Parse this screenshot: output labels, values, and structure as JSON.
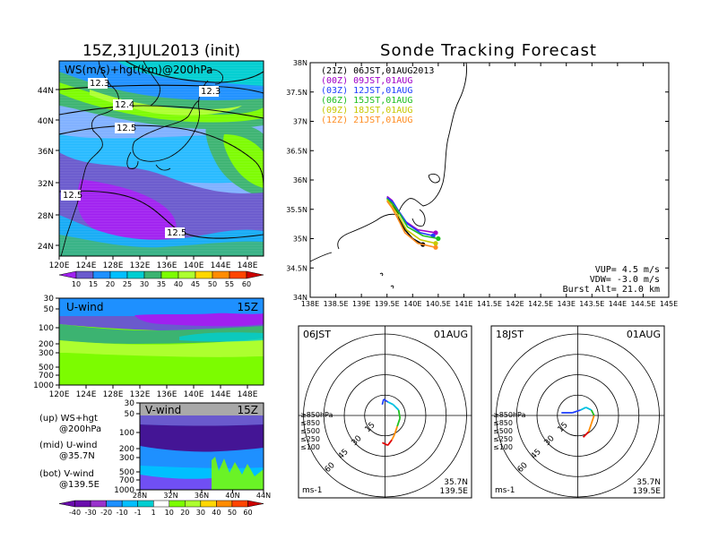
{
  "left_title": "15Z,31JUL2013 (init)",
  "right_title": "Sonde Tracking Forecast",
  "map_panel": {
    "label": "WS(m/s)+hgt(km)@200hPa",
    "lat_ticks": [
      "44N",
      "40N",
      "36N",
      "32N",
      "28N",
      "24N"
    ],
    "lon_ticks": [
      "120E",
      "124E",
      "128E",
      "132E",
      "136E",
      "140E",
      "144E",
      "148E"
    ],
    "contour_labels": [
      "12.3",
      "12.3",
      "12.4",
      "12.5",
      "12.5",
      "12.5"
    ],
    "colorbar_labels": [
      "10",
      "15",
      "20",
      "25",
      "30",
      "35",
      "40",
      "45",
      "50",
      "55",
      "60"
    ],
    "colorbar_colors": [
      "#a020f0",
      "#6a5acd",
      "#1e90ff",
      "#00bfff",
      "#00ced1",
      "#3cb371",
      "#7cfc00",
      "#adff2f",
      "#ffd700",
      "#ff8c00",
      "#ff4500",
      "#cc0000"
    ]
  },
  "uwind_panel": {
    "label": "U-wind",
    "time": "15Z",
    "p_ticks": [
      "30",
      "50",
      "100",
      "200",
      "300",
      "500",
      "700",
      "1000"
    ],
    "lon_ticks": [
      "120E",
      "124E",
      "128E",
      "132E",
      "136E",
      "140E",
      "144E",
      "148E"
    ]
  },
  "vwind_panel": {
    "label": "V-wind",
    "time": "15Z",
    "p_ticks": [
      "30",
      "50",
      "100",
      "200",
      "300",
      "500",
      "700",
      "1000"
    ],
    "lat_ticks": [
      "28N",
      "32N",
      "36N",
      "40N",
      "44N"
    ],
    "colorbar_labels": [
      "-40",
      "-30",
      "-20",
      "-10",
      "-1",
      "1",
      "10",
      "20",
      "30",
      "40",
      "50",
      "60"
    ],
    "colorbar_colors": [
      "#6a0dad",
      "#9932cc",
      "#1e90ff",
      "#00bfff",
      "#00ced1",
      "#ffffff",
      "#7cfc00",
      "#adff2f",
      "#ffd700",
      "#ff8c00",
      "#ff4500",
      "#cc0000"
    ]
  },
  "legend_notes": {
    "up": "(up) WS+hgt",
    "up2": "@200hPa",
    "mid": "(mid) U-wind",
    "mid2": "@35.7N",
    "bot": "(bot) V-wind",
    "bot2": "@139.5E"
  },
  "tracking_panel": {
    "lat_ticks": [
      "38N",
      "37.5N",
      "37N",
      "36.5N",
      "36N",
      "35.5N",
      "35N",
      "34.5N",
      "34N"
    ],
    "lon_ticks": [
      "138E",
      "138.5E",
      "139E",
      "139.5E",
      "140E",
      "140.5E",
      "141E",
      "141.5E",
      "142E",
      "142.5E",
      "143E",
      "143.5E",
      "144E",
      "144.5E",
      "145E"
    ],
    "launches": [
      {
        "label": "(21Z)  06JST,01AUG2013",
        "color": "#000000"
      },
      {
        "label": "(00Z)  09JST,01AUG",
        "color": "#a000c8"
      },
      {
        "label": "(03Z)  12JST,01AUG",
        "color": "#2040ff"
      },
      {
        "label": "(06Z)  15JST,01AUG",
        "color": "#20c020"
      },
      {
        "label": "(09Z)  18JST,01AUG",
        "color": "#c8c800"
      },
      {
        "label": "(12Z)  21JST,01AUG",
        "color": "#ff8c20"
      }
    ],
    "vup": "VUP=  4.5 m/s",
    "vdw": "VDW= -3.0 m/s",
    "burst": "Burst Alt=  21.0 km"
  },
  "chart_data": [
    {
      "type": "line",
      "title": "Sonde Tracking Forecast",
      "xlim": [
        138,
        145
      ],
      "ylim": [
        34,
        38
      ],
      "series": [
        {
          "name": "(21Z)  06JST,01AUG2013",
          "color": "#000000",
          "x": [
            139.5,
            139.6,
            139.7,
            139.75,
            139.85,
            140.0,
            140.2
          ],
          "y": [
            35.7,
            35.6,
            35.45,
            35.3,
            35.15,
            35.0,
            34.9
          ]
        },
        {
          "name": "(00Z)  09JST,01AUG",
          "color": "#a000c8",
          "x": [
            139.5,
            139.6,
            139.7,
            139.85,
            140.1,
            140.45
          ],
          "y": [
            35.72,
            35.65,
            35.5,
            35.3,
            35.15,
            35.1
          ]
        },
        {
          "name": "(03Z)  12JST,01AUG",
          "color": "#2040ff",
          "x": [
            139.5,
            139.62,
            139.72,
            139.9,
            140.15,
            140.4
          ],
          "y": [
            35.7,
            35.62,
            35.48,
            35.25,
            35.1,
            35.05
          ]
        },
        {
          "name": "(06Z)  15JST,01AUG",
          "color": "#20c020",
          "x": [
            139.5,
            139.62,
            139.75,
            139.9,
            140.2,
            140.5
          ],
          "y": [
            35.68,
            35.58,
            35.42,
            35.2,
            35.05,
            35.0
          ]
        },
        {
          "name": "(09Z)  18JST,01AUG",
          "color": "#c8c800",
          "x": [
            139.5,
            139.6,
            139.72,
            139.88,
            140.15,
            140.45
          ],
          "y": [
            35.66,
            35.55,
            35.4,
            35.15,
            34.98,
            34.92
          ]
        },
        {
          "name": "(12Z)  21JST,01AUG",
          "color": "#ff8c20",
          "x": [
            139.5,
            139.6,
            139.7,
            139.85,
            140.1,
            140.45
          ],
          "y": [
            35.64,
            35.52,
            35.36,
            35.1,
            34.92,
            34.85
          ]
        }
      ]
    },
    {
      "type": "line",
      "title": "06JST",
      "date": "01AUG",
      "rings": [
        "15",
        "30",
        "45",
        "60"
      ],
      "units": "ms-1",
      "location": "35.7N",
      "location2": "139.5E",
      "pressure_legend": [
        "≥850hPa",
        "≤850",
        "≤500",
        "≤250",
        "≤100"
      ],
      "pressure_colors": [
        "#e00000",
        "#ff8c00",
        "#20c020",
        "#00c0e0",
        "#2040ff"
      ],
      "hodograph_uv": [
        [
          -2,
          -8
        ],
        [
          -1,
          -12
        ],
        [
          2,
          -10
        ],
        [
          6,
          -8
        ],
        [
          10,
          -4
        ],
        [
          11,
          2
        ],
        [
          9,
          8
        ],
        [
          7,
          14
        ],
        [
          5,
          18
        ],
        [
          2,
          22
        ],
        [
          -2,
          20
        ]
      ]
    },
    {
      "type": "line",
      "title": "18JST",
      "date": "01AUG",
      "rings": [
        "15",
        "30",
        "45",
        "60"
      ],
      "units": "ms-1",
      "location": "35.7N",
      "location2": "139.5E",
      "pressure_legend": [
        "≥850hPa",
        "≤850",
        "≤500",
        "≤250",
        "≤100"
      ],
      "pressure_colors": [
        "#e00000",
        "#ff8c00",
        "#20c020",
        "#00c0e0",
        "#2040ff"
      ],
      "hodograph_uv": [
        [
          -12,
          -2
        ],
        [
          -4,
          -2
        ],
        [
          2,
          -4
        ],
        [
          6,
          -6
        ],
        [
          10,
          -4
        ],
        [
          12,
          0
        ],
        [
          10,
          6
        ],
        [
          8,
          12
        ],
        [
          4,
          16
        ]
      ]
    }
  ]
}
